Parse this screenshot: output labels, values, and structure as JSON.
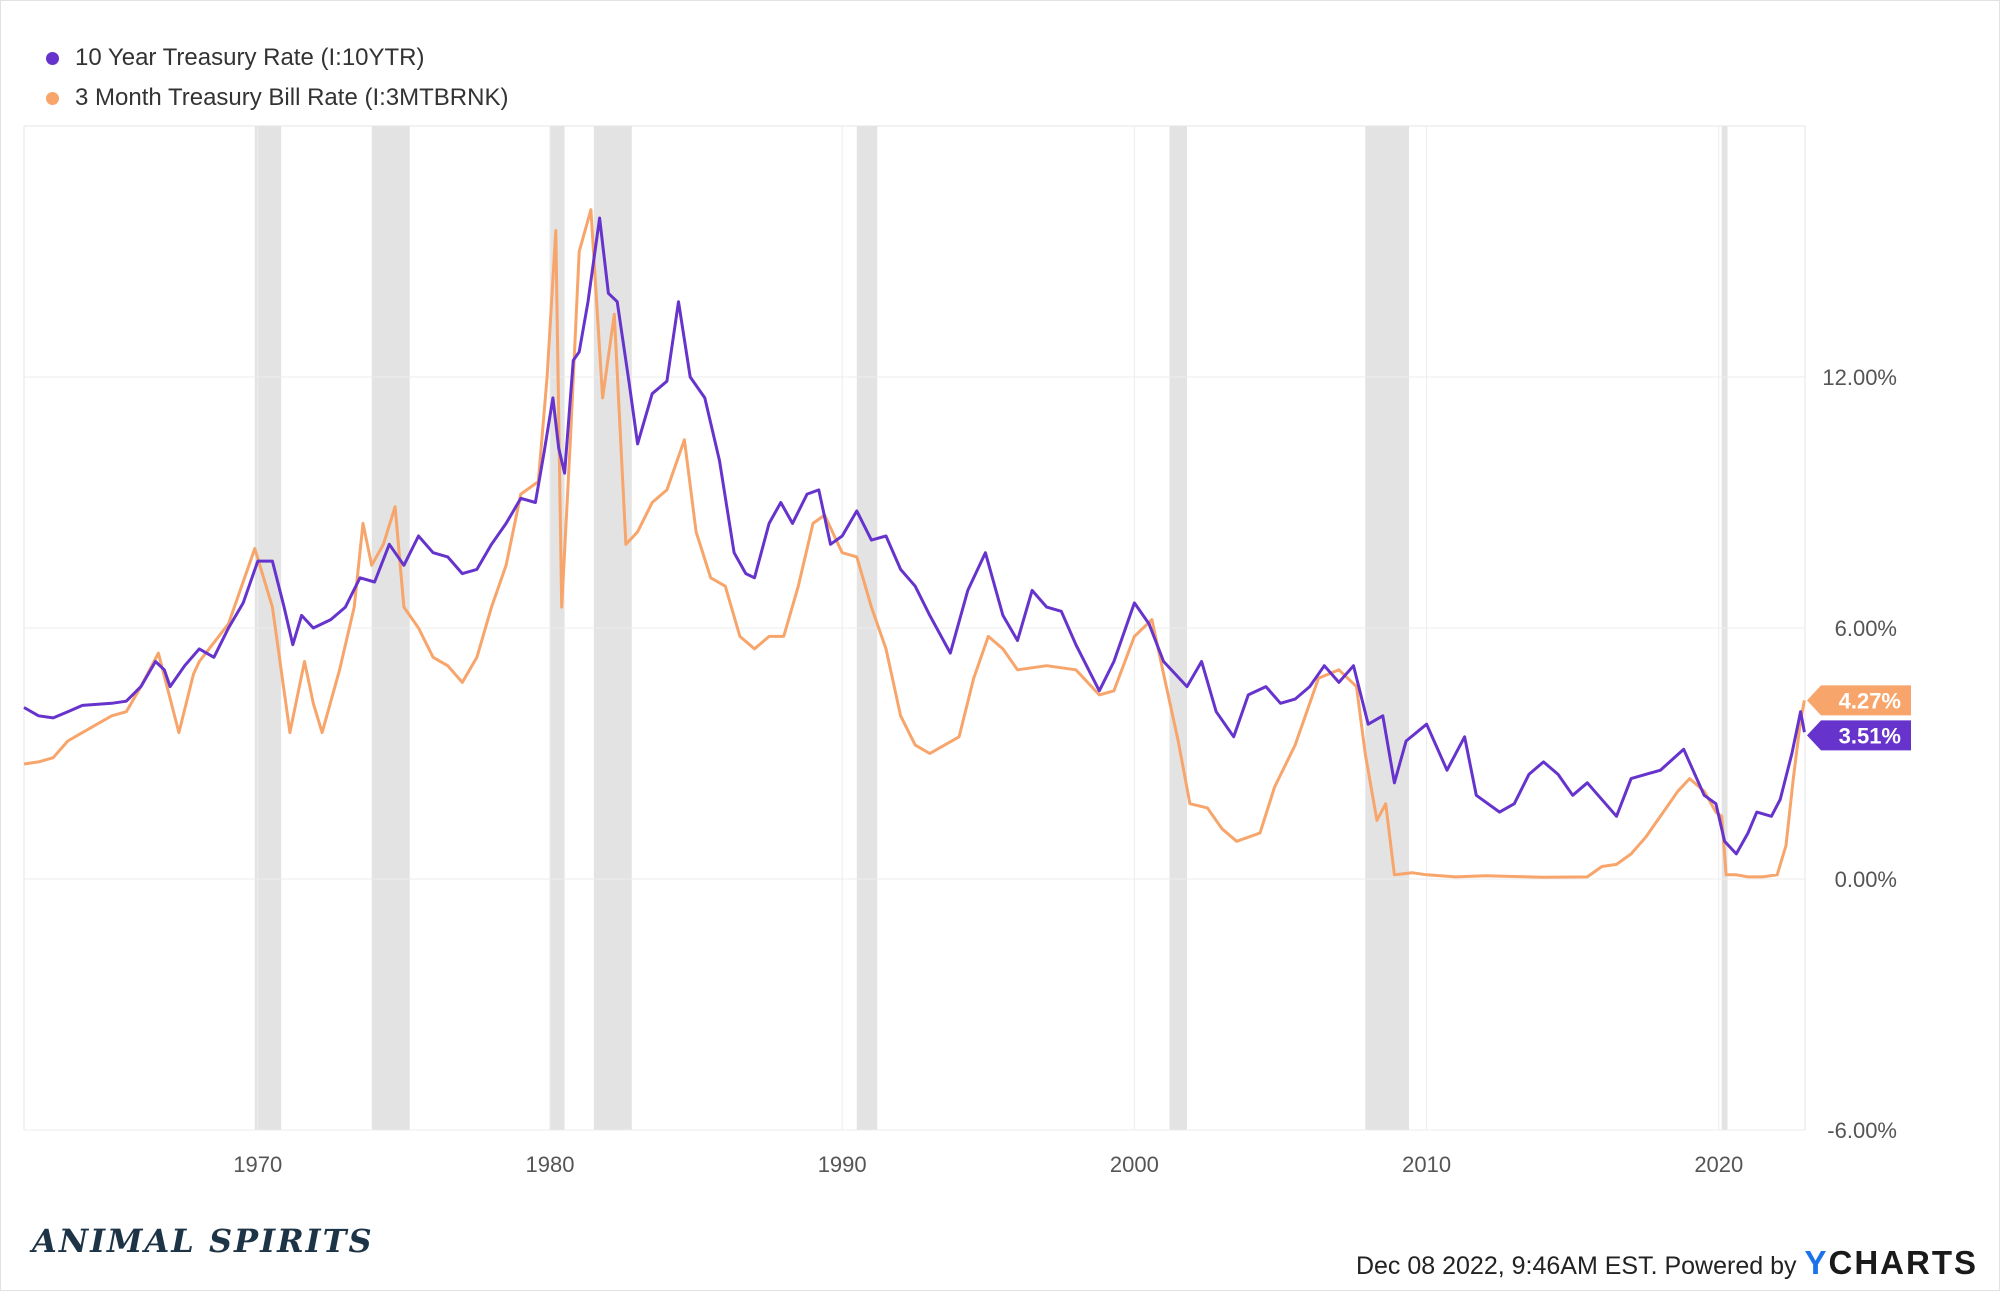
{
  "legend": [
    {
      "label": "10 Year Treasury Rate (I:10YTR)",
      "color": "#6633cc"
    },
    {
      "label": "3 Month Treasury Bill Rate (I:3MTBRNK)",
      "color": "#f7a56b"
    }
  ],
  "chart_data": {
    "type": "line",
    "xlim": [
      1962,
      2022.95
    ],
    "ylim": [
      -6,
      18
    ],
    "x_ticks": [
      1970,
      1980,
      1990,
      2000,
      2010,
      2020
    ],
    "y_ticks": [
      -6,
      0,
      6,
      12
    ],
    "y_tick_labels": [
      "-6.00%",
      "0.00%",
      "6.00%",
      "12.00%"
    ],
    "y_axis_side": "right",
    "grid": true,
    "legend_position": "top-left",
    "recessions": [
      [
        1969.9,
        1970.8
      ],
      [
        1973.9,
        1975.2
      ],
      [
        1980.0,
        1980.5
      ],
      [
        1981.5,
        1982.8
      ],
      [
        1990.5,
        1991.2
      ],
      [
        2001.2,
        2001.8
      ],
      [
        2007.9,
        2009.4
      ],
      [
        2020.1,
        2020.3
      ]
    ],
    "series": [
      {
        "name": "10 Year Treasury Rate (I:10YTR)",
        "color": "#6633cc",
        "last_value_label": "3.51%",
        "points": [
          [
            1962,
            4.1
          ],
          [
            1962.5,
            3.9
          ],
          [
            1963,
            3.85
          ],
          [
            1963.5,
            4.0
          ],
          [
            1964,
            4.15
          ],
          [
            1965,
            4.2
          ],
          [
            1965.5,
            4.25
          ],
          [
            1966,
            4.6
          ],
          [
            1966.5,
            5.2
          ],
          [
            1966.8,
            5.0
          ],
          [
            1967,
            4.6
          ],
          [
            1967.5,
            5.1
          ],
          [
            1968,
            5.5
          ],
          [
            1968.5,
            5.3
          ],
          [
            1969,
            6.0
          ],
          [
            1969.5,
            6.6
          ],
          [
            1970,
            7.6
          ],
          [
            1970.5,
            7.6
          ],
          [
            1970.9,
            6.5
          ],
          [
            1971.2,
            5.6
          ],
          [
            1971.5,
            6.3
          ],
          [
            1971.9,
            6.0
          ],
          [
            1972.5,
            6.2
          ],
          [
            1973.0,
            6.5
          ],
          [
            1973.5,
            7.2
          ],
          [
            1974.0,
            7.1
          ],
          [
            1974.5,
            8.0
          ],
          [
            1975.0,
            7.5
          ],
          [
            1975.5,
            8.2
          ],
          [
            1976.0,
            7.8
          ],
          [
            1976.5,
            7.7
          ],
          [
            1977.0,
            7.3
          ],
          [
            1977.5,
            7.4
          ],
          [
            1978.0,
            8.0
          ],
          [
            1978.5,
            8.5
          ],
          [
            1979.0,
            9.1
          ],
          [
            1979.5,
            9.0
          ],
          [
            1979.8,
            10.2
          ],
          [
            1980.1,
            11.5
          ],
          [
            1980.3,
            10.3
          ],
          [
            1980.5,
            9.7
          ],
          [
            1980.8,
            12.4
          ],
          [
            1981.0,
            12.6
          ],
          [
            1981.3,
            13.8
          ],
          [
            1981.7,
            15.8
          ],
          [
            1982.0,
            14.0
          ],
          [
            1982.3,
            13.8
          ],
          [
            1982.7,
            11.9
          ],
          [
            1983.0,
            10.4
          ],
          [
            1983.5,
            11.6
          ],
          [
            1984.0,
            11.9
          ],
          [
            1984.4,
            13.8
          ],
          [
            1984.8,
            12.0
          ],
          [
            1985.3,
            11.5
          ],
          [
            1985.8,
            10.0
          ],
          [
            1986.3,
            7.8
          ],
          [
            1986.7,
            7.3
          ],
          [
            1987.0,
            7.2
          ],
          [
            1987.5,
            8.5
          ],
          [
            1987.9,
            9.0
          ],
          [
            1988.3,
            8.5
          ],
          [
            1988.8,
            9.2
          ],
          [
            1989.2,
            9.3
          ],
          [
            1989.6,
            8.0
          ],
          [
            1990.0,
            8.2
          ],
          [
            1990.5,
            8.8
          ],
          [
            1991.0,
            8.1
          ],
          [
            1991.5,
            8.2
          ],
          [
            1992.0,
            7.4
          ],
          [
            1992.5,
            7.0
          ],
          [
            1993.0,
            6.3
          ],
          [
            1993.7,
            5.4
          ],
          [
            1994.3,
            6.9
          ],
          [
            1994.9,
            7.8
          ],
          [
            1995.5,
            6.3
          ],
          [
            1996.0,
            5.7
          ],
          [
            1996.5,
            6.9
          ],
          [
            1997.0,
            6.5
          ],
          [
            1997.5,
            6.4
          ],
          [
            1998.0,
            5.6
          ],
          [
            1998.8,
            4.5
          ],
          [
            1999.3,
            5.2
          ],
          [
            2000.0,
            6.6
          ],
          [
            2000.5,
            6.1
          ],
          [
            2001.0,
            5.2
          ],
          [
            2001.8,
            4.6
          ],
          [
            2002.3,
            5.2
          ],
          [
            2002.8,
            4.0
          ],
          [
            2003.4,
            3.4
          ],
          [
            2003.9,
            4.4
          ],
          [
            2004.5,
            4.6
          ],
          [
            2005.0,
            4.2
          ],
          [
            2005.5,
            4.3
          ],
          [
            2006.0,
            4.6
          ],
          [
            2006.5,
            5.1
          ],
          [
            2007.0,
            4.7
          ],
          [
            2007.5,
            5.1
          ],
          [
            2008.0,
            3.7
          ],
          [
            2008.5,
            3.9
          ],
          [
            2008.9,
            2.3
          ],
          [
            2009.3,
            3.3
          ],
          [
            2010.0,
            3.7
          ],
          [
            2010.7,
            2.6
          ],
          [
            2011.3,
            3.4
          ],
          [
            2011.7,
            2.0
          ],
          [
            2012.5,
            1.6
          ],
          [
            2013.0,
            1.8
          ],
          [
            2013.5,
            2.5
          ],
          [
            2014.0,
            2.8
          ],
          [
            2014.5,
            2.5
          ],
          [
            2015.0,
            2.0
          ],
          [
            2015.5,
            2.3
          ],
          [
            2016.5,
            1.5
          ],
          [
            2017.0,
            2.4
          ],
          [
            2018.0,
            2.6
          ],
          [
            2018.8,
            3.1
          ],
          [
            2019.5,
            2.0
          ],
          [
            2019.9,
            1.8
          ],
          [
            2020.2,
            0.9
          ],
          [
            2020.6,
            0.6
          ],
          [
            2021.0,
            1.1
          ],
          [
            2021.3,
            1.6
          ],
          [
            2021.8,
            1.5
          ],
          [
            2022.1,
            1.9
          ],
          [
            2022.5,
            3.0
          ],
          [
            2022.8,
            4.0
          ],
          [
            2022.93,
            3.51
          ]
        ]
      },
      {
        "name": "3 Month Treasury Bill Rate (I:3MTBRNK)",
        "color": "#f7a56b",
        "last_value_label": "4.27%",
        "points": [
          [
            1962,
            2.75
          ],
          [
            1962.5,
            2.8
          ],
          [
            1963,
            2.9
          ],
          [
            1963.5,
            3.3
          ],
          [
            1964,
            3.5
          ],
          [
            1965,
            3.9
          ],
          [
            1965.5,
            4.0
          ],
          [
            1966,
            4.6
          ],
          [
            1966.6,
            5.4
          ],
          [
            1967.3,
            3.5
          ],
          [
            1967.8,
            4.9
          ],
          [
            1968,
            5.2
          ],
          [
            1969.0,
            6.1
          ],
          [
            1969.9,
            7.9
          ],
          [
            1970.5,
            6.5
          ],
          [
            1971.1,
            3.5
          ],
          [
            1971.6,
            5.2
          ],
          [
            1971.9,
            4.2
          ],
          [
            1972.2,
            3.5
          ],
          [
            1972.8,
            5.0
          ],
          [
            1973.3,
            6.5
          ],
          [
            1973.6,
            8.5
          ],
          [
            1973.9,
            7.5
          ],
          [
            1974.3,
            8.0
          ],
          [
            1974.7,
            8.9
          ],
          [
            1975.0,
            6.5
          ],
          [
            1975.5,
            6.0
          ],
          [
            1976.0,
            5.3
          ],
          [
            1976.5,
            5.1
          ],
          [
            1977.0,
            4.7
          ],
          [
            1977.5,
            5.3
          ],
          [
            1978.0,
            6.5
          ],
          [
            1978.5,
            7.5
          ],
          [
            1979.0,
            9.2
          ],
          [
            1979.6,
            9.5
          ],
          [
            1979.9,
            12.0
          ],
          [
            1980.2,
            15.5
          ],
          [
            1980.4,
            6.5
          ],
          [
            1980.7,
            10.5
          ],
          [
            1981.0,
            15.0
          ],
          [
            1981.4,
            16.0
          ],
          [
            1981.8,
            11.5
          ],
          [
            1982.2,
            13.5
          ],
          [
            1982.6,
            8.0
          ],
          [
            1983.0,
            8.3
          ],
          [
            1983.5,
            9.0
          ],
          [
            1984.0,
            9.3
          ],
          [
            1984.6,
            10.5
          ],
          [
            1985.0,
            8.3
          ],
          [
            1985.5,
            7.2
          ],
          [
            1986.0,
            7.0
          ],
          [
            1986.5,
            5.8
          ],
          [
            1987.0,
            5.5
          ],
          [
            1987.5,
            5.8
          ],
          [
            1988.0,
            5.8
          ],
          [
            1988.5,
            7.0
          ],
          [
            1989.0,
            8.5
          ],
          [
            1989.4,
            8.7
          ],
          [
            1990.0,
            7.8
          ],
          [
            1990.5,
            7.7
          ],
          [
            1991.0,
            6.5
          ],
          [
            1991.5,
            5.5
          ],
          [
            1992.0,
            3.9
          ],
          [
            1992.5,
            3.2
          ],
          [
            1993.0,
            3.0
          ],
          [
            1994.0,
            3.4
          ],
          [
            1994.5,
            4.8
          ],
          [
            1995.0,
            5.8
          ],
          [
            1995.5,
            5.5
          ],
          [
            1996.0,
            5.0
          ],
          [
            1997.0,
            5.1
          ],
          [
            1998.0,
            5.0
          ],
          [
            1998.8,
            4.4
          ],
          [
            1999.3,
            4.5
          ],
          [
            2000.0,
            5.8
          ],
          [
            2000.6,
            6.2
          ],
          [
            2001.0,
            4.9
          ],
          [
            2001.5,
            3.3
          ],
          [
            2001.9,
            1.8
          ],
          [
            2002.5,
            1.7
          ],
          [
            2003.0,
            1.2
          ],
          [
            2003.5,
            0.9
          ],
          [
            2004.3,
            1.1
          ],
          [
            2004.8,
            2.2
          ],
          [
            2005.5,
            3.2
          ],
          [
            2006.3,
            4.8
          ],
          [
            2007.0,
            5.0
          ],
          [
            2007.6,
            4.6
          ],
          [
            2007.9,
            3.0
          ],
          [
            2008.3,
            1.4
          ],
          [
            2008.6,
            1.8
          ],
          [
            2008.9,
            0.1
          ],
          [
            2009.5,
            0.15
          ],
          [
            2010.0,
            0.1
          ],
          [
            2011.0,
            0.05
          ],
          [
            2012.0,
            0.08
          ],
          [
            2014.0,
            0.04
          ],
          [
            2015.5,
            0.05
          ],
          [
            2016.0,
            0.3
          ],
          [
            2016.5,
            0.35
          ],
          [
            2017.0,
            0.6
          ],
          [
            2017.5,
            1.0
          ],
          [
            2018.0,
            1.5
          ],
          [
            2018.6,
            2.1
          ],
          [
            2019.0,
            2.4
          ],
          [
            2019.5,
            2.1
          ],
          [
            2019.9,
            1.6
          ],
          [
            2020.1,
            1.5
          ],
          [
            2020.25,
            0.1
          ],
          [
            2020.6,
            0.1
          ],
          [
            2021.0,
            0.05
          ],
          [
            2021.5,
            0.05
          ],
          [
            2022.0,
            0.1
          ],
          [
            2022.3,
            0.8
          ],
          [
            2022.55,
            2.4
          ],
          [
            2022.8,
            3.8
          ],
          [
            2022.93,
            4.27
          ]
        ]
      }
    ]
  },
  "brand": "ANIMAL SPIRITS",
  "footer": {
    "timestamp": "Dec 08 2022, 9:46AM EST. Powered by",
    "logo_y": "Y",
    "logo_rest": "CHARTS"
  }
}
